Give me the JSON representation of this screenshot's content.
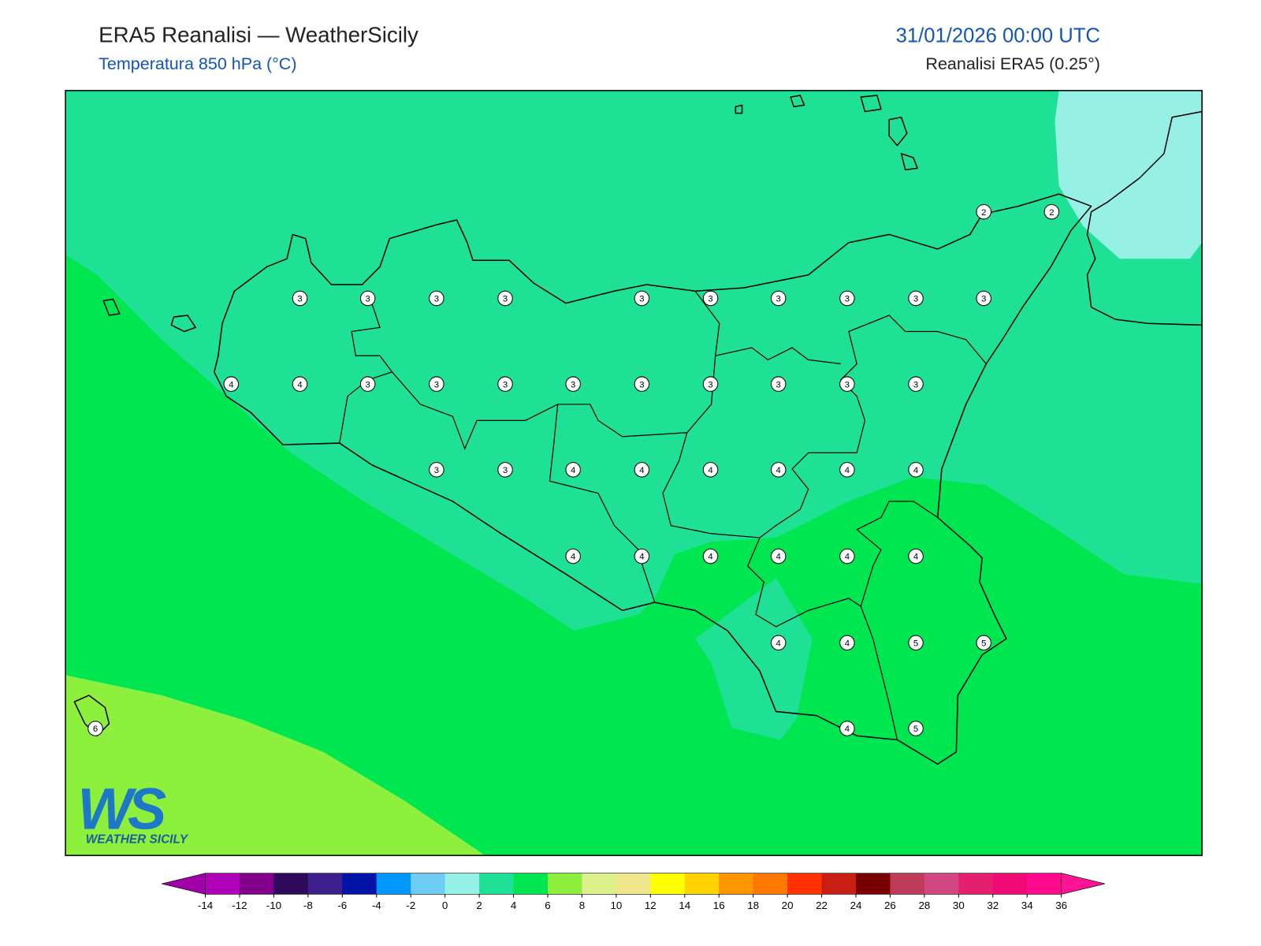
{
  "header": {
    "title": "ERA5 Reanalisi — WeatherSicily",
    "subtitle": "Temperatura 850 hPa (°C)",
    "date": "31/01/2026 00:00 UTC",
    "source": "Reanalisi ERA5 (0.25°)"
  },
  "map": {
    "station_values": [
      2,
      2,
      3,
      3,
      3,
      3,
      3,
      3,
      3,
      3,
      3,
      3,
      4,
      4,
      3,
      3,
      3,
      3,
      3,
      3,
      3,
      3,
      3,
      3,
      3,
      4,
      4,
      4,
      4,
      4,
      4,
      4,
      4,
      4,
      4,
      4,
      4,
      4,
      4,
      5,
      5,
      6,
      4,
      5
    ]
  },
  "colorbar": {
    "ticks": [
      -14,
      -12,
      -10,
      -8,
      -6,
      -4,
      -2,
      0,
      2,
      4,
      6,
      8,
      10,
      12,
      14,
      16,
      18,
      20,
      22,
      24,
      26,
      28,
      30,
      32,
      34,
      36
    ],
    "colors": [
      "#b000b8",
      "#80008c",
      "#300a5a",
      "#3c1e8c",
      "#0014a8",
      "#0096ff",
      "#6ecdf5",
      "#96f0e6",
      "#1ee196",
      "#00e650",
      "#8cf03c",
      "#dcf08c",
      "#f0e68c",
      "#ffff00",
      "#ffd200",
      "#ff9600",
      "#ff7800",
      "#ff3200",
      "#c81e14",
      "#780000",
      "#be3c5a",
      "#d24682",
      "#e61e6e",
      "#f00a78",
      "#ff0a8c"
    ],
    "under_color": "#a000a8",
    "over_color": "#ff1493"
  },
  "logo": {
    "mark": "WS",
    "name": "WEATHER SICILY"
  }
}
